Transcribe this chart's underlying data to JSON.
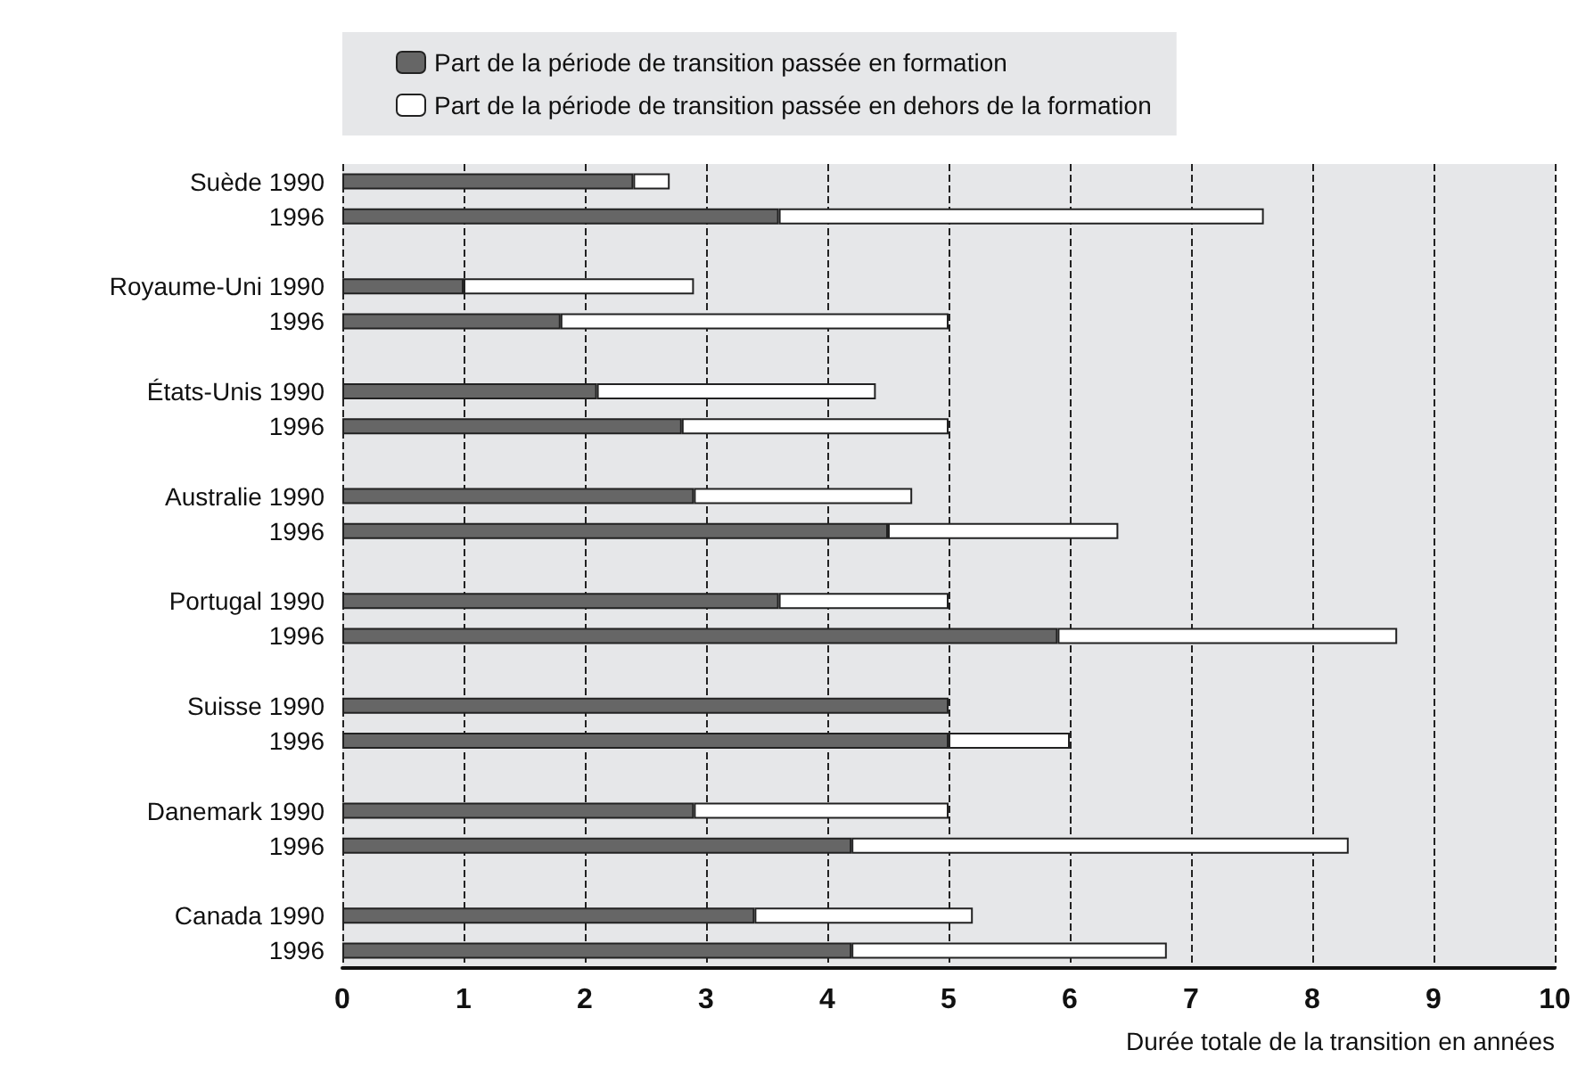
{
  "chart_data": {
    "type": "bar",
    "orientation": "horizontal",
    "stacked": true,
    "xlabel": "Durée totale de la transition en années",
    "categories": [
      "Suède 1990",
      "1996",
      null,
      "Royaume-Uni 1990",
      "1996",
      null,
      "États-Unis 1990",
      "1996",
      null,
      "Australie 1990",
      "1996",
      null,
      "Portugal 1990",
      "1996",
      null,
      "Suisse 1990",
      "1996",
      null,
      "Danemark 1990",
      "1996",
      null,
      "Canada 1990",
      "1996"
    ],
    "series": [
      {
        "name": "Part de la période de transition passée en formation",
        "color": "#666666",
        "values": [
          2.4,
          3.6,
          null,
          1.0,
          1.8,
          null,
          2.1,
          2.8,
          null,
          2.9,
          4.5,
          null,
          3.6,
          5.9,
          null,
          5.0,
          5.0,
          null,
          2.9,
          4.2,
          null,
          3.4,
          4.2
        ]
      },
      {
        "name": "Part de la période de transition passée en dehors de la formation",
        "color": "#ffffff",
        "values": [
          0.3,
          4.0,
          null,
          1.9,
          3.2,
          null,
          2.3,
          2.2,
          null,
          1.8,
          1.9,
          null,
          1.4,
          2.8,
          null,
          null,
          1.0,
          null,
          2.1,
          4.1,
          null,
          1.8,
          2.6
        ]
      }
    ],
    "xlim": [
      0,
      10
    ],
    "xticks": [
      0,
      1,
      2,
      3,
      4,
      5,
      6,
      7,
      8,
      9,
      10
    ],
    "grid": "x",
    "legend": "top"
  }
}
